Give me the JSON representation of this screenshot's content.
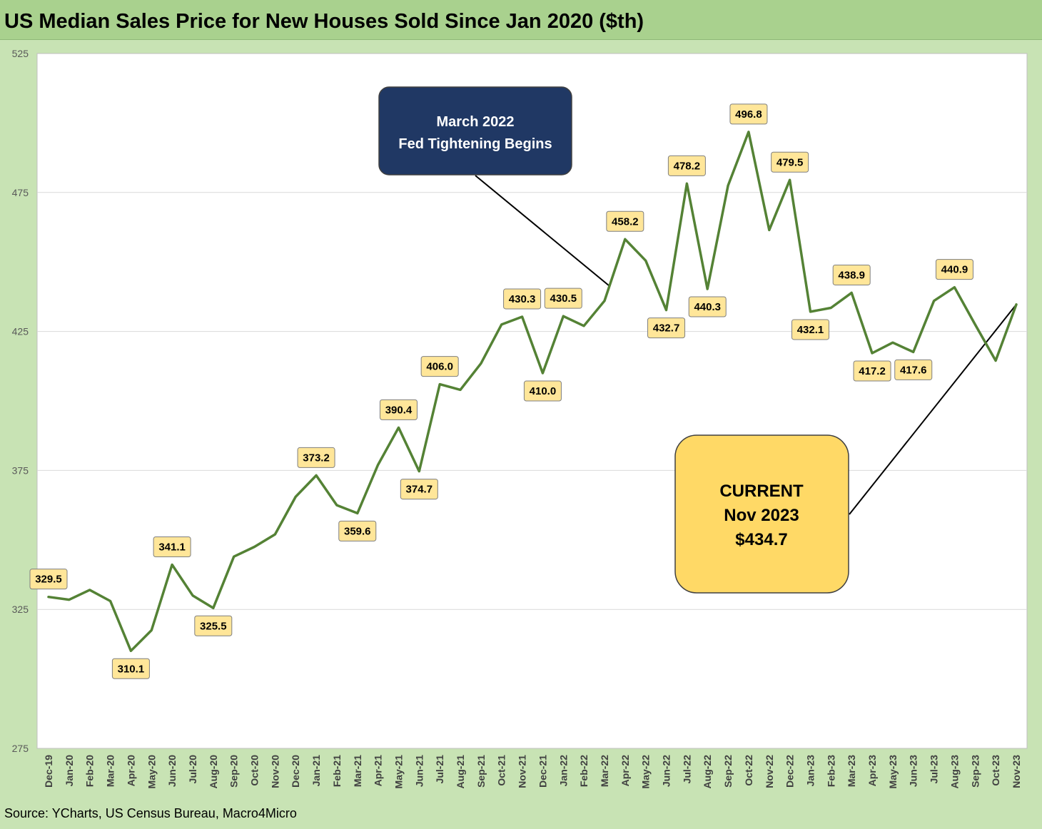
{
  "title": "US Median Sales Price for New Houses Sold Since Jan 2020 ($th)",
  "source": "Source: YCharts, US Census Bureau, Macro4Micro",
  "colors": {
    "background": "#c8e3b4",
    "title_bar": "#a9d18e",
    "plot_area": "#ffffff",
    "line": "#548235",
    "data_label_fill": "#ffe699",
    "callout_navy": "#203864",
    "callout_yellow": "#ffd966"
  },
  "chart_data": {
    "type": "line",
    "title": "US Median Sales Price for New Houses Sold Since Jan 2020 ($th)",
    "xlabel": "",
    "ylabel": "",
    "ylim": [
      275,
      525
    ],
    "yticks": [
      275,
      325,
      375,
      425,
      475,
      525
    ],
    "grid": true,
    "categories": [
      "Dec-19",
      "Jan-20",
      "Feb-20",
      "Mar-20",
      "Apr-20",
      "May-20",
      "Jun-20",
      "Jul-20",
      "Aug-20",
      "Sep-20",
      "Oct-20",
      "Nov-20",
      "Dec-20",
      "Jan-21",
      "Feb-21",
      "Mar-21",
      "Apr-21",
      "May-21",
      "Jun-21",
      "Jul-21",
      "Aug-21",
      "Sep-21",
      "Oct-21",
      "Nov-21",
      "Dec-21",
      "Jan-22",
      "Feb-22",
      "Mar-22",
      "Apr-22",
      "May-22",
      "Jun-22",
      "Jul-22",
      "Aug-22",
      "Sep-22",
      "Oct-22",
      "Nov-22",
      "Dec-22",
      "Jan-23",
      "Feb-23",
      "Mar-23",
      "Apr-23",
      "May-23",
      "Jun-23",
      "Jul-23",
      "Aug-23",
      "Sep-23",
      "Oct-23",
      "Nov-23"
    ],
    "series": [
      {
        "values": [
          329.5,
          328.5,
          332.0,
          328.0,
          310.1,
          317.5,
          341.1,
          330.0,
          325.5,
          344.0,
          347.5,
          352.0,
          365.5,
          373.2,
          362.5,
          359.6,
          377.0,
          390.4,
          374.7,
          406.0,
          404.0,
          413.5,
          427.5,
          430.3,
          410.0,
          430.5,
          427.0,
          436.0,
          458.2,
          450.5,
          432.7,
          478.2,
          440.3,
          477.5,
          496.8,
          461.5,
          479.5,
          432.1,
          433.5,
          438.9,
          417.2,
          421.0,
          417.6,
          436.0,
          440.9,
          427.5,
          414.5,
          434.7
        ]
      }
    ],
    "data_labels": [
      {
        "category": "Dec-19",
        "text": "329.5",
        "position": "above"
      },
      {
        "category": "Apr-20",
        "text": "310.1",
        "position": "below"
      },
      {
        "category": "Jun-20",
        "text": "341.1",
        "position": "above"
      },
      {
        "category": "Aug-20",
        "text": "325.5",
        "position": "below"
      },
      {
        "category": "Jan-21",
        "text": "373.2",
        "position": "above"
      },
      {
        "category": "Mar-21",
        "text": "359.6",
        "position": "below"
      },
      {
        "category": "May-21",
        "text": "390.4",
        "position": "above"
      },
      {
        "category": "Jun-21",
        "text": "374.7",
        "position": "below"
      },
      {
        "category": "Jul-21",
        "text": "406.0",
        "position": "above"
      },
      {
        "category": "Nov-21",
        "text": "430.3",
        "position": "above"
      },
      {
        "category": "Dec-21",
        "text": "410.0",
        "position": "below"
      },
      {
        "category": "Jan-22",
        "text": "430.5",
        "position": "above"
      },
      {
        "category": "Apr-22",
        "text": "458.2",
        "position": "above"
      },
      {
        "category": "Jun-22",
        "text": "432.7",
        "position": "below"
      },
      {
        "category": "Jul-22",
        "text": "478.2",
        "position": "above"
      },
      {
        "category": "Aug-22",
        "text": "440.3",
        "position": "below"
      },
      {
        "category": "Oct-22",
        "text": "496.8",
        "position": "above"
      },
      {
        "category": "Dec-22",
        "text": "479.5",
        "position": "above"
      },
      {
        "category": "Jan-23",
        "text": "432.1",
        "position": "below"
      },
      {
        "category": "Mar-23",
        "text": "438.9",
        "position": "above"
      },
      {
        "category": "Apr-23",
        "text": "417.2",
        "position": "below"
      },
      {
        "category": "Jun-23",
        "text": "417.6",
        "position": "below"
      },
      {
        "category": "Aug-23",
        "text": "440.9",
        "position": "above"
      }
    ],
    "annotations": [
      {
        "style": "navy",
        "lines": [
          "March 2022",
          "Fed Tightening Begins"
        ],
        "points_to": "Mar-22"
      },
      {
        "style": "yellow",
        "lines": [
          "CURRENT",
          "Nov 2023",
          "$434.7"
        ],
        "points_to": "Nov-23"
      }
    ]
  }
}
